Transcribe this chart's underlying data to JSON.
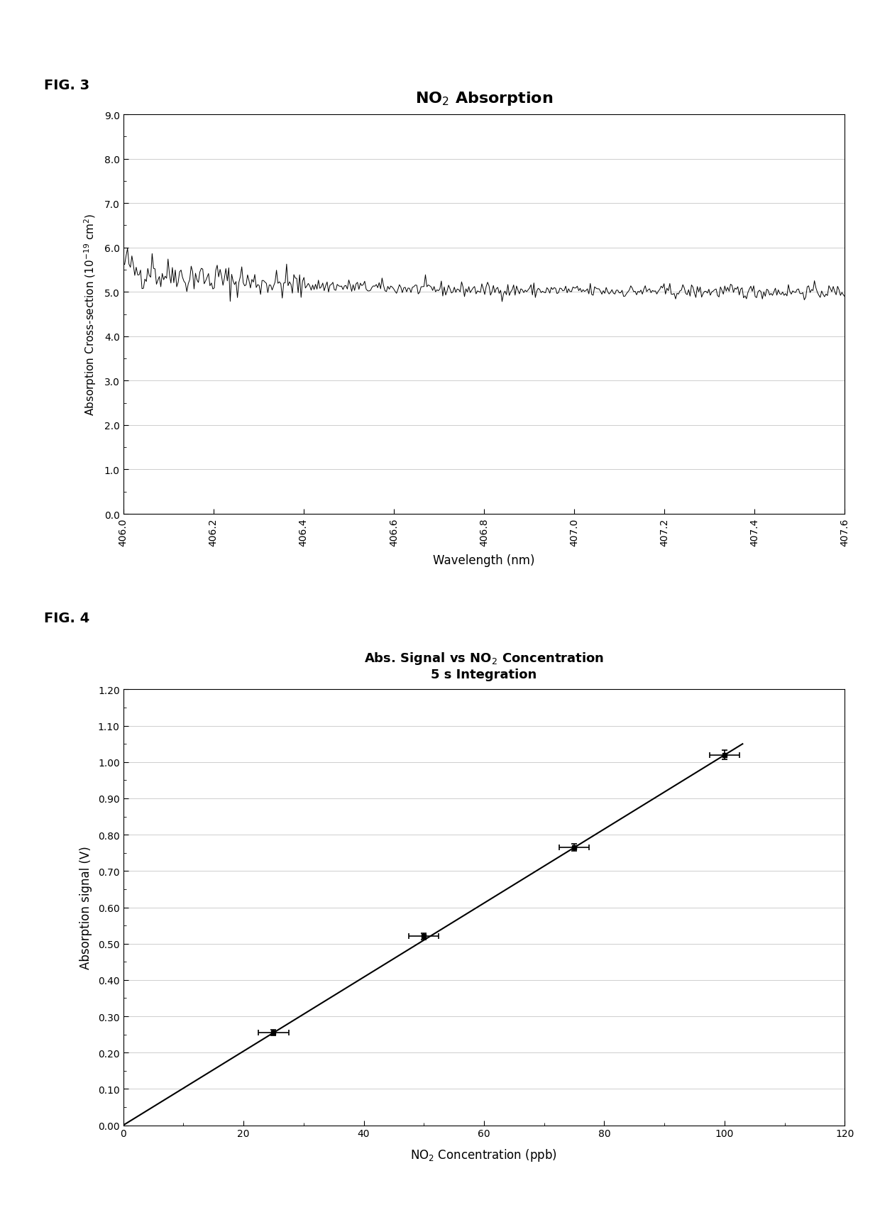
{
  "fig3": {
    "title": "NO$_2$ Absorption",
    "xlabel": "Wavelength (nm)",
    "ylabel": "Absorption Cross-section (10$^{-19}$ cm$^2$)",
    "xlim": [
      406.0,
      407.6
    ],
    "ylim": [
      0.0,
      9.0
    ],
    "yticks": [
      0.0,
      1.0,
      2.0,
      3.0,
      4.0,
      5.0,
      6.0,
      7.0,
      8.0,
      9.0
    ],
    "xtick_vals": [
      406.0,
      406.2,
      406.4,
      406.6,
      406.8,
      407.0,
      407.2,
      407.4,
      407.6
    ],
    "xtick_labels": [
      "406.0",
      "406.2",
      "406.4",
      "406.6",
      "406.8",
      "407.0",
      "407.2",
      "407.4",
      "407.6"
    ],
    "line_color": "#000000",
    "grid_color": "#bbbbbb",
    "fig_label": "FIG. 3"
  },
  "fig4": {
    "title_line1": "Abs. Signal vs NO$_2$ Concentration",
    "title_line2": "5 s Integration",
    "xlabel": "NO$_2$ Concentration (ppb)",
    "ylabel": "Absorption signal (V)",
    "xlim": [
      0,
      120
    ],
    "ylim": [
      0.0,
      1.2
    ],
    "xticks": [
      0,
      20,
      40,
      60,
      80,
      100,
      120
    ],
    "yticks": [
      0.0,
      0.1,
      0.2,
      0.3,
      0.4,
      0.5,
      0.6,
      0.7,
      0.8,
      0.9,
      1.0,
      1.1,
      1.2
    ],
    "data_x": [
      25,
      50,
      75,
      100
    ],
    "data_y": [
      0.255,
      0.52,
      0.765,
      1.02
    ],
    "xerr": [
      2.5,
      2.5,
      2.5,
      2.5
    ],
    "yerr": [
      0.008,
      0.008,
      0.01,
      0.012
    ],
    "fit_x": [
      0,
      103
    ],
    "fit_y": [
      0.0,
      1.05
    ],
    "line_color": "#000000",
    "grid_color": "#bbbbbb",
    "fig_label": "FIG. 4"
  }
}
